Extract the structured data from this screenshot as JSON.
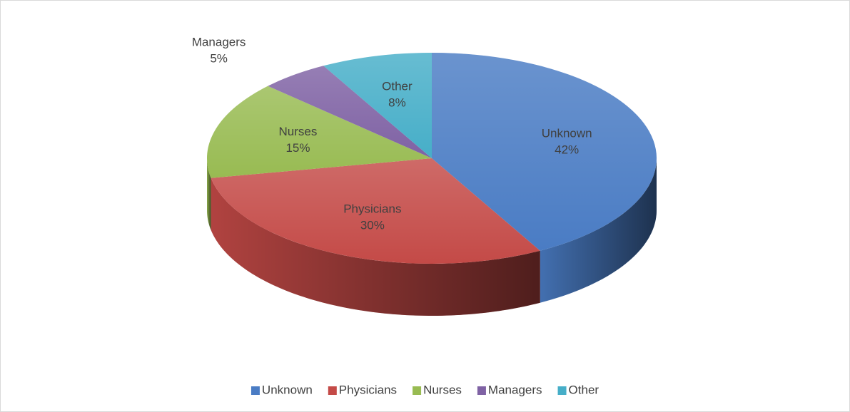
{
  "chart_data": {
    "type": "pie",
    "categories": [
      "Unknown",
      "Physicians",
      "Nurses",
      "Managers",
      "Other"
    ],
    "values": [
      42,
      30,
      15,
      5,
      8
    ],
    "value_labels": [
      "42%",
      "30%",
      "15%",
      "5%",
      "8%"
    ],
    "colors": [
      "#4a7cc4",
      "#c44a47",
      "#98bb52",
      "#7f62a4",
      "#46aec8"
    ],
    "legend": "bottom"
  }
}
